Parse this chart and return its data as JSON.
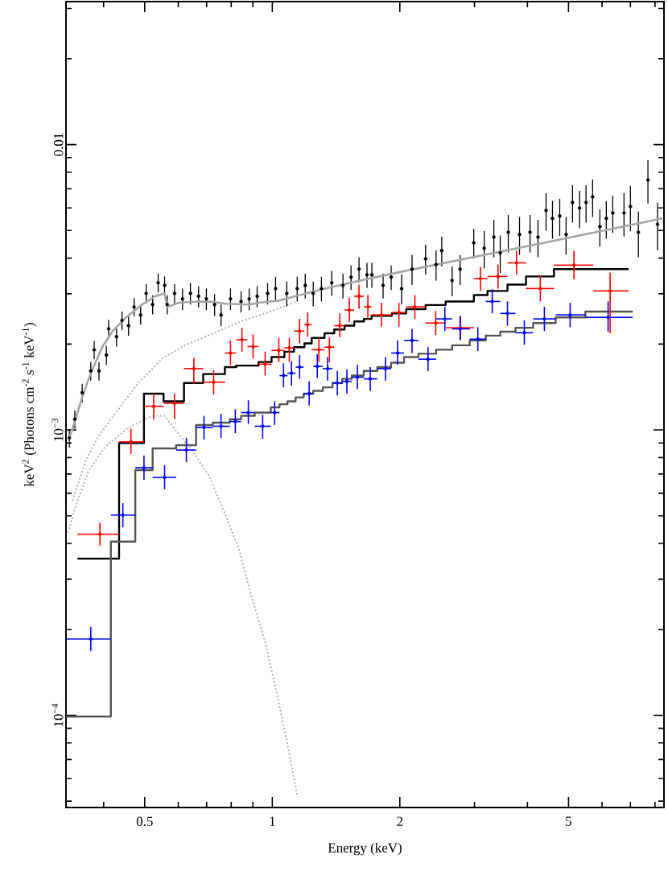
{
  "chart_data": {
    "type": "scatter",
    "xlabel": "Energy (keV)",
    "ylabel": "keV$^{2}$ (Photons cm$^{-2}$ s$^{-1}$ keV$^{-1}$)",
    "log": "xy",
    "xlim": [
      0.326,
      8.4
    ],
    "ylim": [
      4.75e-05,
      0.0317
    ],
    "xticks": [
      {
        "value": 0.4,
        "label": null
      },
      0.5,
      {
        "value": 0.6,
        "label": null
      },
      {
        "value": 0.7,
        "label": null
      },
      {
        "value": 0.8,
        "label": null
      },
      {
        "value": 0.9,
        "label": null
      },
      1,
      2,
      {
        "value": 3,
        "label": null
      },
      {
        "value": 4,
        "label": null
      },
      5,
      {
        "value": 6,
        "label": null
      },
      {
        "value": 7,
        "label": null
      },
      {
        "value": 8,
        "label": null
      }
    ],
    "yticks": [
      {
        "value": 5e-05,
        "label": null
      },
      {
        "value": 6e-05,
        "label": null
      },
      {
        "value": 7e-05,
        "label": null
      },
      {
        "value": 8e-05,
        "label": null
      },
      {
        "value": 9e-05,
        "label": null
      },
      {
        "value": 0.0001,
        "label": "10$^{−4}$"
      },
      {
        "value": 0.0002,
        "label": null
      },
      {
        "value": 0.0003,
        "label": null
      },
      {
        "value": 0.0004,
        "label": null
      },
      {
        "value": 0.0005,
        "label": null
      },
      {
        "value": 0.0006,
        "label": null
      },
      {
        "value": 0.0007,
        "label": null
      },
      {
        "value": 0.0008,
        "label": null
      },
      {
        "value": 0.0009,
        "label": null
      },
      {
        "value": 0.001,
        "label": "10$^{−3}$"
      },
      {
        "value": 0.002,
        "label": null
      },
      {
        "value": 0.003,
        "label": null
      },
      {
        "value": 0.004,
        "label": null
      },
      {
        "value": 0.005,
        "label": null
      },
      {
        "value": 0.006,
        "label": null
      },
      {
        "value": 0.007,
        "label": null
      },
      {
        "value": 0.008,
        "label": null
      },
      {
        "value": 0.009,
        "label": null
      },
      0.01,
      {
        "value": 0.02,
        "label": null
      },
      {
        "value": 0.03,
        "label": null
      }
    ],
    "series": [
      {
        "type": "line",
        "line_style": "dotted",
        "color": "#b3b3b3",
        "x": [
          0.33,
          0.345,
          0.368,
          0.402,
          0.458,
          0.522,
          0.557,
          0.595,
          0.65,
          0.709,
          0.773,
          0.833,
          0.893,
          0.962,
          1.018,
          1.082,
          1.145
        ],
        "values": [
          0.000439,
          0.000551,
          0.000714,
          0.000867,
          0.00102,
          0.00112,
          0.00112,
          0.000987,
          0.000839,
          0.000691,
          0.000509,
          0.000385,
          0.000261,
          0.000181,
          0.000125,
          8.13e-05,
          5.26e-05
        ]
      },
      {
        "type": "line",
        "line_style": "dotted",
        "color": "#b3b3b3",
        "x": [
          0.338,
          0.364,
          0.39,
          0.42,
          0.479,
          0.553,
          0.622,
          0.731,
          0.844,
          0.975,
          1.145
        ],
        "values": [
          0.000569,
          0.000787,
          0.000956,
          0.00111,
          0.00144,
          0.00179,
          0.00198,
          0.00219,
          0.0024,
          0.00258,
          0.00282
        ]
      },
      {
        "type": "step",
        "color": "#000000",
        "x": [
          0.347,
          0.435,
          0.498,
          0.554,
          0.619,
          0.687,
          0.773,
          0.822,
          0.874,
          0.928,
          0.996,
          1.068,
          1.125,
          1.191,
          1.239,
          1.328,
          1.4,
          1.481,
          1.561,
          1.645,
          1.715,
          1.915,
          2.07,
          2.3,
          2.565,
          2.99,
          3.22,
          3.59,
          3.97,
          4.62,
          5.72,
          6.93
        ],
        "values": [
          0.000354,
          0.0009,
          0.00134,
          0.00126,
          0.00146,
          0.00157,
          0.00166,
          0.00168,
          0.00168,
          0.00173,
          0.0018,
          0.00188,
          0.00195,
          0.00201,
          0.0021,
          0.00218,
          0.00225,
          0.00232,
          0.0024,
          0.00245,
          0.00251,
          0.00256,
          0.00265,
          0.00274,
          0.00282,
          0.00297,
          0.00307,
          0.00323,
          0.00345,
          0.00366,
          0.00366,
          0.00366
        ]
      },
      {
        "type": "step",
        "color": "#555555",
        "x": [
          0.326,
          0.416,
          0.475,
          0.522,
          0.593,
          0.661,
          0.724,
          0.794,
          0.844,
          0.909,
          0.992,
          1.04,
          1.086,
          1.135,
          1.186,
          1.249,
          1.316,
          1.387,
          1.462,
          1.54,
          1.644,
          1.77,
          1.908,
          2.046,
          2.212,
          2.435,
          2.657,
          2.924,
          3.19,
          3.451,
          3.75,
          4.127,
          4.663,
          5.481,
          7.09
        ],
        "values": [
          9.9e-05,
          0.000406,
          0.000723,
          0.000861,
          0.000884,
          0.00104,
          0.00106,
          0.00109,
          0.00112,
          0.00115,
          0.0012,
          0.00123,
          0.00126,
          0.0013,
          0.00134,
          0.00137,
          0.00141,
          0.00146,
          0.00151,
          0.00155,
          0.00161,
          0.00166,
          0.00172,
          0.0018,
          0.00185,
          0.00191,
          0.00198,
          0.00206,
          0.00214,
          0.00221,
          0.00228,
          0.00237,
          0.00248,
          0.0026,
          0.0026
        ]
      },
      {
        "color": "#ff0000",
        "x": [
          0.392,
          0.464,
          0.525,
          0.588,
          0.653,
          0.727,
          0.797,
          0.848,
          0.901,
          0.962,
          1.036,
          1.097,
          1.16,
          1.212,
          1.288,
          1.364,
          1.443,
          1.52,
          1.602,
          1.681,
          1.81,
          1.99,
          2.17,
          2.43,
          2.78,
          3.1,
          3.41,
          3.77,
          4.29,
          5.15,
          6.27
        ],
        "values": [
          0.000431,
          0.000908,
          0.00121,
          0.00124,
          0.00164,
          0.00147,
          0.00186,
          0.00207,
          0.00196,
          0.0017,
          0.0019,
          0.00194,
          0.00222,
          0.00234,
          0.00191,
          0.00195,
          0.00232,
          0.00263,
          0.00294,
          0.0027,
          0.00253,
          0.00258,
          0.0027,
          0.00237,
          0.00228,
          0.00339,
          0.00345,
          0.00385,
          0.00313,
          0.00378,
          0.00307
        ],
        "errors": [
          [
            0.000393,
            0.000474
          ],
          [
            0.000823,
            0.00101
          ],
          [
            0.00109,
            0.00134
          ],
          [
            0.00109,
            0.00134
          ],
          [
            0.00145,
            0.00179
          ],
          [
            0.00133,
            0.00162
          ],
          [
            0.00169,
            0.00206
          ],
          [
            0.00188,
            0.00228
          ],
          [
            0.00178,
            0.00216
          ],
          [
            0.00155,
            0.00188
          ],
          [
            0.00173,
            0.0021
          ],
          [
            0.00173,
            0.0021
          ],
          [
            0.00201,
            0.00245
          ],
          [
            0.00212,
            0.00258
          ],
          [
            0.00173,
            0.00211
          ],
          [
            0.00173,
            0.00211
          ],
          [
            0.00211,
            0.00256
          ],
          [
            0.00239,
            0.0029
          ],
          [
            0.00266,
            0.00323
          ],
          [
            0.00245,
            0.00297
          ],
          [
            0.0023,
            0.00279
          ],
          [
            0.0023,
            0.00279
          ],
          [
            0.00245,
            0.00297
          ],
          [
            0.00215,
            0.00261
          ],
          [
            0.00207,
            0.00251
          ],
          [
            0.00307,
            0.00373
          ],
          [
            0.00313,
            0.0038
          ],
          [
            0.0035,
            0.00425
          ],
          [
            0.00282,
            0.00348
          ],
          [
            0.00337,
            0.00425
          ],
          [
            0.00218,
            0.00356
          ]
        ],
        "xerrors": [
          [
            0.347,
            0.435
          ],
          [
            0.435,
            0.498
          ],
          [
            0.498,
            0.554
          ],
          [
            0.554,
            0.619
          ],
          [
            0.619,
            0.687
          ],
          [
            0.687,
            0.773
          ],
          [
            0.773,
            0.822
          ],
          [
            0.822,
            0.874
          ],
          [
            0.874,
            0.928
          ],
          [
            0.928,
            0.996
          ],
          [
            0.996,
            1.068
          ],
          [
            1.068,
            1.125
          ],
          [
            1.125,
            1.191
          ],
          [
            1.191,
            1.239
          ],
          [
            1.239,
            1.328
          ],
          [
            1.328,
            1.4
          ],
          [
            1.4,
            1.481
          ],
          [
            1.481,
            1.561
          ],
          [
            1.561,
            1.645
          ],
          [
            1.645,
            1.715
          ],
          [
            1.715,
            1.915
          ],
          [
            1.915,
            2.07
          ],
          [
            2.07,
            2.3
          ],
          [
            2.3,
            2.565
          ],
          [
            2.565,
            2.99
          ],
          [
            2.99,
            3.22
          ],
          [
            3.22,
            3.59
          ],
          [
            3.59,
            3.97
          ],
          [
            3.97,
            4.62
          ],
          [
            4.62,
            5.72
          ],
          [
            5.72,
            6.93
          ]
        ]
      },
      {
        "color": "#0000ff",
        "x": [
          0.373,
          0.444,
          0.498,
          0.557,
          0.627,
          0.69,
          0.757,
          0.818,
          0.878,
          0.949,
          1.013,
          1.063,
          1.11,
          1.16,
          1.222,
          1.277,
          1.351,
          1.424,
          1.5,
          1.588,
          1.703,
          1.85,
          1.976,
          2.137,
          2.331,
          2.554,
          2.775,
          3.055,
          3.304,
          3.589,
          3.934,
          4.386,
          5.044,
          6.2
        ],
        "values": [
          0.000185,
          0.000503,
          0.000737,
          0.000682,
          0.00085,
          0.00102,
          0.00103,
          0.00107,
          0.00115,
          0.00103,
          0.00115,
          0.00155,
          0.00158,
          0.00166,
          0.00134,
          0.00167,
          0.00164,
          0.00146,
          0.00148,
          0.00153,
          0.00151,
          0.00164,
          0.00186,
          0.00206,
          0.00177,
          0.00245,
          0.00226,
          0.00208,
          0.00282,
          0.00256,
          0.00219,
          0.00245,
          0.00253,
          0.00248
        ],
        "errors": [
          [
            0.000168,
            0.000204
          ],
          [
            0.000456,
            0.000554
          ],
          [
            0.000669,
            0.000813
          ],
          [
            0.000619,
            0.000752
          ],
          [
            0.000771,
            0.000937
          ],
          [
            0.000925,
            0.00112
          ],
          [
            0.000937,
            0.00114
          ],
          [
            0.000974,
            0.00118
          ],
          [
            0.00105,
            0.00127
          ],
          [
            0.000931,
            0.00113
          ],
          [
            0.00104,
            0.00126
          ],
          [
            0.00141,
            0.00171
          ],
          [
            0.00143,
            0.00174
          ],
          [
            0.00151,
            0.00183
          ],
          [
            0.00122,
            0.00148
          ],
          [
            0.00152,
            0.00184
          ],
          [
            0.00149,
            0.0018
          ],
          [
            0.00132,
            0.00161
          ],
          [
            0.00134,
            0.00163
          ],
          [
            0.00139,
            0.00169
          ],
          [
            0.00137,
            0.00166
          ],
          [
            0.00149,
            0.0018
          ],
          [
            0.00169,
            0.00206
          ],
          [
            0.00186,
            0.00226
          ],
          [
            0.00161,
            0.00195
          ],
          [
            0.00222,
            0.0027
          ],
          [
            0.00206,
            0.0025
          ],
          [
            0.00189,
            0.00229
          ],
          [
            0.00256,
            0.00311
          ],
          [
            0.00232,
            0.00282
          ],
          [
            0.00199,
            0.00242
          ],
          [
            0.00222,
            0.0027
          ],
          [
            0.00229,
            0.00279
          ],
          [
            0.00221,
            0.00282
          ]
        ],
        "xerrors": [
          [
            0.326,
            0.416
          ],
          [
            0.416,
            0.475
          ],
          [
            0.475,
            0.522
          ],
          [
            0.522,
            0.593
          ],
          [
            0.593,
            0.661
          ],
          [
            0.661,
            0.724
          ],
          [
            0.724,
            0.794
          ],
          [
            0.794,
            0.844
          ],
          [
            0.844,
            0.909
          ],
          [
            0.909,
            0.992
          ],
          [
            0.992,
            1.04
          ],
          [
            1.04,
            1.086
          ],
          [
            1.086,
            1.135
          ],
          [
            1.135,
            1.186
          ],
          [
            1.186,
            1.249
          ],
          [
            1.249,
            1.316
          ],
          [
            1.316,
            1.387
          ],
          [
            1.387,
            1.462
          ],
          [
            1.462,
            1.54
          ],
          [
            1.54,
            1.644
          ],
          [
            1.644,
            1.77
          ],
          [
            1.77,
            1.908
          ],
          [
            1.908,
            2.046
          ],
          [
            2.046,
            2.212
          ],
          [
            2.212,
            2.435
          ],
          [
            2.435,
            2.657
          ],
          [
            2.657,
            2.924
          ],
          [
            2.924,
            3.19
          ],
          [
            3.19,
            3.451
          ],
          [
            3.451,
            3.75
          ],
          [
            3.75,
            4.127
          ],
          [
            4.127,
            4.663
          ],
          [
            4.663,
            5.481
          ],
          [
            5.481,
            7.09
          ]
        ]
      },
      {
        "color": "#000000",
        "x": [
          0.332,
          0.342,
          0.356,
          0.373,
          0.38,
          0.39,
          0.406,
          0.411,
          0.429,
          0.442,
          0.458,
          0.472,
          0.489,
          0.504,
          0.522,
          0.538,
          0.557,
          0.565,
          0.588,
          0.614,
          0.641,
          0.67,
          0.699,
          0.731,
          0.757,
          0.797,
          0.844,
          0.882,
          0.921,
          0.975,
          1.018,
          1.082,
          1.145,
          1.196,
          1.249,
          1.306,
          1.381,
          1.468,
          1.534,
          1.602,
          1.673,
          1.718,
          1.826,
          1.908,
          2.019,
          2.137,
          2.3,
          2.435,
          2.511,
          2.657,
          2.775,
          2.988,
          3.163,
          3.333,
          3.451,
          3.605,
          3.832,
          4.057,
          4.236,
          4.426,
          4.583,
          4.767,
          4.935,
          5.11,
          5.31,
          5.5,
          5.7,
          5.93,
          6.14,
          6.36,
          6.76,
          7.0,
          7.31,
          7.7,
          8.11
        ],
        "values": [
          0.000937,
          0.00109,
          0.00135,
          0.00161,
          0.00191,
          0.00161,
          0.00183,
          0.00226,
          0.00212,
          0.00242,
          0.00232,
          0.0027,
          0.00253,
          0.00301,
          0.00275,
          0.00328,
          0.00321,
          0.00275,
          0.00301,
          0.00288,
          0.00301,
          0.00294,
          0.00288,
          0.00275,
          0.00253,
          0.00288,
          0.00282,
          0.00288,
          0.00294,
          0.00301,
          0.00313,
          0.00301,
          0.00313,
          0.00321,
          0.00301,
          0.00313,
          0.00328,
          0.00321,
          0.00343,
          0.00366,
          0.0035,
          0.0035,
          0.00321,
          0.00343,
          0.00313,
          0.00366,
          0.00398,
          0.0038,
          0.00425,
          0.00334,
          0.00366,
          0.00453,
          0.00433,
          0.00474,
          0.00417,
          0.00493,
          0.00484,
          0.00493,
          0.00474,
          0.00587,
          0.00551,
          0.00562,
          0.00484,
          0.00627,
          0.00599,
          0.00627,
          0.00656,
          0.00516,
          0.00551,
          0.00576,
          0.00576,
          0.00607,
          0.00493,
          0.00752,
          0.00526
        ],
        "errors": [
          7e-05,
          8e-05,
          0.0001,
          0.00012,
          0.00014,
          0.00012,
          0.00014,
          0.00017,
          0.00016,
          0.00018,
          0.00018,
          0.0002,
          0.00019,
          0.00023,
          0.00021,
          0.00025,
          0.00024,
          0.00021,
          0.00023,
          0.00025,
          0.00026,
          0.00025,
          0.00025,
          0.00024,
          0.00022,
          0.00025,
          0.00024,
          0.00025,
          0.00025,
          0.00026,
          0.00031,
          0.0003,
          0.00031,
          0.00032,
          0.0003,
          0.00031,
          0.00033,
          0.00032,
          0.00034,
          0.00037,
          0.00035,
          0.00035,
          0.00032,
          0.00034,
          0.00038,
          0.00044,
          0.00048,
          0.00046,
          0.00051,
          0.0004,
          0.00044,
          0.00054,
          0.00065,
          0.00071,
          0.00063,
          0.00074,
          0.00073,
          0.00074,
          0.00071,
          0.00088,
          0.00083,
          0.00084,
          0.00073,
          0.00094,
          0.0009,
          0.00094,
          0.00098,
          0.00077,
          0.00083,
          0.00086,
          0.001,
          0.0011,
          0.0009,
          0.0013,
          0.001
        ]
      },
      {
        "type": "line",
        "line_style": "solid",
        "color": "#a6a6a6",
        "x": [
          0.332,
          0.342,
          0.357,
          0.373,
          0.397,
          0.42,
          0.452,
          0.493,
          0.529,
          0.557,
          0.565,
          0.603,
          0.67,
          0.731,
          0.773,
          0.882,
          0.933,
          1.036,
          1.16,
          1.381,
          1.696,
          1.992,
          4.109,
          8.33
        ],
        "values": [
          0.000937,
          0.00107,
          0.00132,
          0.00158,
          0.00195,
          0.00222,
          0.00248,
          0.00275,
          0.00294,
          0.00301,
          0.0027,
          0.00279,
          0.00282,
          0.00281,
          0.00277,
          0.00275,
          0.00279,
          0.00284,
          0.00297,
          0.00317,
          0.00339,
          0.00357,
          0.00444,
          0.00551
        ]
      }
    ]
  }
}
